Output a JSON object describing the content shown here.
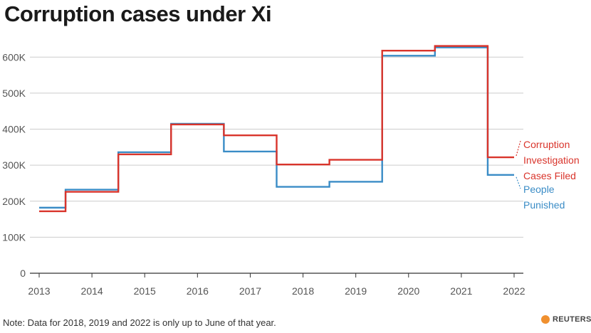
{
  "title": "Corruption cases under Xi",
  "note": "Note: Data for 2018, 2019 and 2022 is only up to June of that year.",
  "brand": "REUTERS",
  "colors": {
    "cases": "#d9342b",
    "punished": "#3a8cc6",
    "grid": "#cccccc",
    "axis": "#333333"
  },
  "chart_data": {
    "type": "line",
    "step": true,
    "x": [
      2013,
      2014,
      2015,
      2016,
      2017,
      2018,
      2019,
      2020,
      2021,
      2022
    ],
    "series": [
      {
        "name": "Corruption Investigation Cases Filed",
        "name_lines": [
          "Corruption",
          "Investigation",
          "Cases Filed"
        ],
        "color": "#d9342b",
        "values": [
          172000,
          226000,
          330000,
          413000,
          383000,
          302000,
          315000,
          618000,
          631000,
          322000
        ]
      },
      {
        "name": "People Punished",
        "name_lines": [
          "People",
          "Punished"
        ],
        "color": "#3a8cc6",
        "values": [
          182000,
          232000,
          336000,
          415000,
          338000,
          240000,
          254000,
          604000,
          627000,
          273000
        ]
      }
    ],
    "ylim": [
      0,
      650000
    ],
    "yticks": [
      0,
      100000,
      200000,
      300000,
      400000,
      500000,
      600000
    ],
    "ytick_labels": [
      "0",
      "100K",
      "200K",
      "300K",
      "400K",
      "500K",
      "600K"
    ],
    "xtick_labels": [
      "2013",
      "2014",
      "2015",
      "2016",
      "2017",
      "2018",
      "2019",
      "2020",
      "2021",
      "2022"
    ],
    "grid": true,
    "legend": "right (direct labels)"
  }
}
